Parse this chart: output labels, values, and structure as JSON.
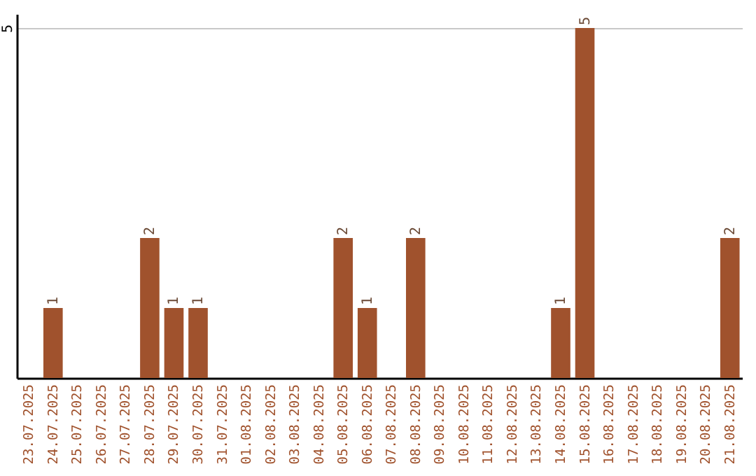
{
  "chart_data": {
    "type": "bar",
    "categories": [
      "23.07.2025",
      "24.07.2025",
      "25.07.2025",
      "26.07.2025",
      "27.07.2025",
      "28.07.2025",
      "29.07.2025",
      "30.07.2025",
      "31.07.2025",
      "01.08.2025",
      "02.08.2025",
      "03.08.2025",
      "04.08.2025",
      "05.08.2025",
      "06.08.2025",
      "07.08.2025",
      "08.08.2025",
      "09.08.2025",
      "10.08.2025",
      "11.08.2025",
      "12.08.2025",
      "13.08.2025",
      "14.08.2025",
      "15.08.2025",
      "16.08.2025",
      "17.08.2025",
      "18.08.2025",
      "19.08.2025",
      "20.08.2025",
      "21.08.2025"
    ],
    "values": [
      0,
      1,
      0,
      0,
      0,
      2,
      1,
      1,
      0,
      0,
      0,
      0,
      0,
      2,
      1,
      0,
      2,
      0,
      0,
      0,
      0,
      0,
      1,
      5,
      0,
      0,
      0,
      0,
      0,
      2
    ],
    "value_labels": [
      null,
      "1",
      null,
      null,
      null,
      "2",
      "1",
      "1",
      null,
      null,
      null,
      null,
      null,
      "2",
      "1",
      null,
      "2",
      null,
      null,
      null,
      null,
      null,
      "1",
      "5",
      null,
      null,
      null,
      null,
      null,
      "2"
    ],
    "color": "#a0522d",
    "ylim": [
      0,
      5.2
    ],
    "yticks": [
      5
    ],
    "grid": "y"
  }
}
